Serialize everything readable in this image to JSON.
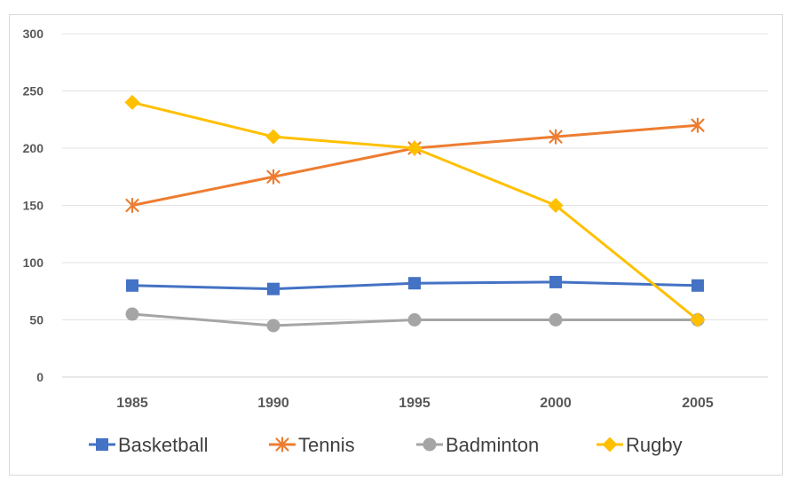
{
  "chart_data": {
    "type": "line",
    "categories": [
      "1985",
      "1990",
      "1995",
      "2000",
      "2005"
    ],
    "ylim": [
      0,
      300
    ],
    "yticks": [
      "0",
      "50",
      "100",
      "150",
      "200",
      "250",
      "300"
    ],
    "grid": true,
    "legend_position": "bottom",
    "title": "",
    "xlabel": "",
    "ylabel": "",
    "series": [
      {
        "name": "Basketball",
        "values": [
          80,
          77,
          82,
          83,
          80
        ],
        "color": "#4472c4",
        "marker": "square"
      },
      {
        "name": "Tennis",
        "values": [
          150,
          175,
          200,
          210,
          220
        ],
        "color": "#ed7d31",
        "marker": "star"
      },
      {
        "name": "Badminton",
        "values": [
          55,
          45,
          50,
          50,
          50
        ],
        "color": "#a5a5a5",
        "marker": "circle"
      },
      {
        "name": "Rugby",
        "values": [
          240,
          210,
          200,
          150,
          50
        ],
        "color": "#ffc000",
        "marker": "diamond"
      }
    ]
  }
}
